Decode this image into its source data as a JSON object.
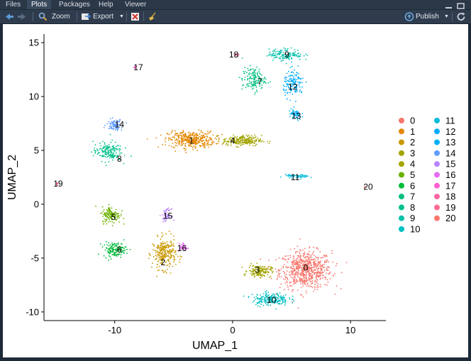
{
  "tabs": [
    {
      "label": "Files",
      "active": false
    },
    {
      "label": "Plots",
      "active": true
    },
    {
      "label": "Packages",
      "active": false
    },
    {
      "label": "Help",
      "active": false
    },
    {
      "label": "Viewer",
      "active": false
    }
  ],
  "toolbar": {
    "zoom_label": "Zoom",
    "export_label": "Export",
    "publish_label": "Publish",
    "icons": [
      "back-arrow-icon",
      "forward-arrow-icon",
      "magnifier-icon",
      "export-icon",
      "remove-plot-icon",
      "broom-icon",
      "publish-icon",
      "refresh-icon"
    ]
  },
  "colors": {
    "pane_bg": "#1e2a38",
    "tabbar_bg": "#2b3848",
    "toolbar_bg": "#2f3c4d"
  },
  "chart_data": {
    "type": "scatter",
    "xlabel": "UMAP_1",
    "ylabel": "UMAP_2",
    "xlim": [
      -16,
      13
    ],
    "ylim": [
      -10.8,
      15.8
    ],
    "xticks": [
      -10,
      0,
      10
    ],
    "yticks": [
      -10,
      -5,
      0,
      5,
      10,
      15
    ],
    "grid": false,
    "legend_position": "right",
    "legend_columns": 2,
    "clusters": [
      {
        "name": "0",
        "color": "#F8766D",
        "cx": 6.2,
        "cy": -6.1,
        "sx": 2.0,
        "sy": 1.6,
        "n": 700
      },
      {
        "name": "1",
        "color": "#E58700",
        "cx": -3.5,
        "cy": 6.0,
        "sx": 1.8,
        "sy": 0.7,
        "n": 380
      },
      {
        "name": "2",
        "color": "#C99800",
        "cx": -5.8,
        "cy": -4.6,
        "sx": 0.9,
        "sy": 1.3,
        "n": 260
      },
      {
        "name": "3",
        "color": "#A3A500",
        "cx": 2.3,
        "cy": -6.2,
        "sx": 0.9,
        "sy": 0.5,
        "n": 160
      },
      {
        "name": "4",
        "color": "#A3A500",
        "cx": 0.8,
        "cy": 5.9,
        "sx": 1.5,
        "sy": 0.45,
        "n": 240
      },
      {
        "name": "5",
        "color": "#6BB100",
        "cx": -10.3,
        "cy": -1.0,
        "sx": 0.7,
        "sy": 0.7,
        "n": 140
      },
      {
        "name": "6",
        "color": "#00BA38",
        "cx": -10.0,
        "cy": -4.2,
        "sx": 0.9,
        "sy": 0.6,
        "n": 140
      },
      {
        "name": "7",
        "color": "#00BF7D",
        "cx": 1.8,
        "cy": 11.6,
        "sx": 0.9,
        "sy": 1.0,
        "n": 150
      },
      {
        "name": "8",
        "color": "#00C08B",
        "cx": -10.6,
        "cy": 4.9,
        "sx": 1.1,
        "sy": 0.8,
        "n": 170
      },
      {
        "name": "9",
        "color": "#00C1AA",
        "cx": 4.5,
        "cy": 13.9,
        "sx": 1.3,
        "sy": 0.5,
        "n": 140
      },
      {
        "name": "10",
        "color": "#00BFC4",
        "cx": 3.2,
        "cy": -8.8,
        "sx": 1.4,
        "sy": 0.55,
        "n": 200
      },
      {
        "name": "11",
        "color": "#00BBDA",
        "cx": 5.5,
        "cy": 2.6,
        "sx": 0.9,
        "sy": 0.15,
        "n": 60
      },
      {
        "name": "12",
        "color": "#00ACFC",
        "cx": 5.2,
        "cy": 11.2,
        "sx": 0.8,
        "sy": 1.1,
        "n": 140
      },
      {
        "name": "13",
        "color": "#00B0F6",
        "cx": 5.3,
        "cy": 8.3,
        "sx": 0.5,
        "sy": 0.5,
        "n": 60
      },
      {
        "name": "14",
        "color": "#619CFF",
        "cx": -10.0,
        "cy": 7.4,
        "sx": 0.6,
        "sy": 0.45,
        "n": 90
      },
      {
        "name": "15",
        "color": "#B983FF",
        "cx": -5.6,
        "cy": -1.0,
        "sx": 0.35,
        "sy": 0.5,
        "n": 50
      },
      {
        "name": "16",
        "color": "#E76BF3",
        "cx": -4.2,
        "cy": -4.0,
        "sx": 0.35,
        "sy": 0.35,
        "n": 40
      },
      {
        "name": "17",
        "color": "#FD61D1",
        "cx": -8.3,
        "cy": 12.7,
        "sx": 0.12,
        "sy": 0.12,
        "n": 8
      },
      {
        "name": "18",
        "color": "#FF67A4",
        "cx": 0.4,
        "cy": 13.9,
        "sx": 0.2,
        "sy": 0.12,
        "n": 10
      },
      {
        "name": "19",
        "color": "#FF6C91",
        "cx": -14.9,
        "cy": 1.9,
        "sx": 0.1,
        "sy": 0.1,
        "n": 5
      },
      {
        "name": "20",
        "color": "#F8766D",
        "cx": 11.2,
        "cy": 1.6,
        "sx": 0.1,
        "sy": 0.1,
        "n": 4
      }
    ],
    "labels": [
      {
        "text": "0",
        "x": 6.2,
        "y": -5.9
      },
      {
        "text": "1",
        "x": -3.5,
        "y": 5.9
      },
      {
        "text": "2",
        "x": -5.9,
        "y": -5.4
      },
      {
        "text": "3",
        "x": 2.1,
        "y": -6.1
      },
      {
        "text": "4",
        "x": 0.0,
        "y": 5.9
      },
      {
        "text": "5",
        "x": -10.1,
        "y": -1.2
      },
      {
        "text": "6",
        "x": -9.6,
        "y": -4.2
      },
      {
        "text": "7",
        "x": 2.3,
        "y": 11.4
      },
      {
        "text": "8",
        "x": -9.6,
        "y": 4.2
      },
      {
        "text": "9",
        "x": 4.6,
        "y": 13.9
      },
      {
        "text": "10",
        "x": 3.3,
        "y": -8.9
      },
      {
        "text": "11",
        "x": 5.3,
        "y": 2.5
      },
      {
        "text": "12",
        "x": 5.1,
        "y": 10.9
      },
      {
        "text": "13",
        "x": 5.4,
        "y": 8.2
      },
      {
        "text": "14",
        "x": -9.6,
        "y": 7.4
      },
      {
        "text": "15",
        "x": -5.5,
        "y": -1.1
      },
      {
        "text": "16",
        "x": -4.3,
        "y": -4.1
      },
      {
        "text": "17",
        "x": -8.0,
        "y": 12.7
      },
      {
        "text": "18",
        "x": 0.1,
        "y": 13.9
      },
      {
        "text": "19",
        "x": -14.8,
        "y": 1.9
      },
      {
        "text": "20",
        "x": 11.5,
        "y": 1.6
      }
    ]
  }
}
